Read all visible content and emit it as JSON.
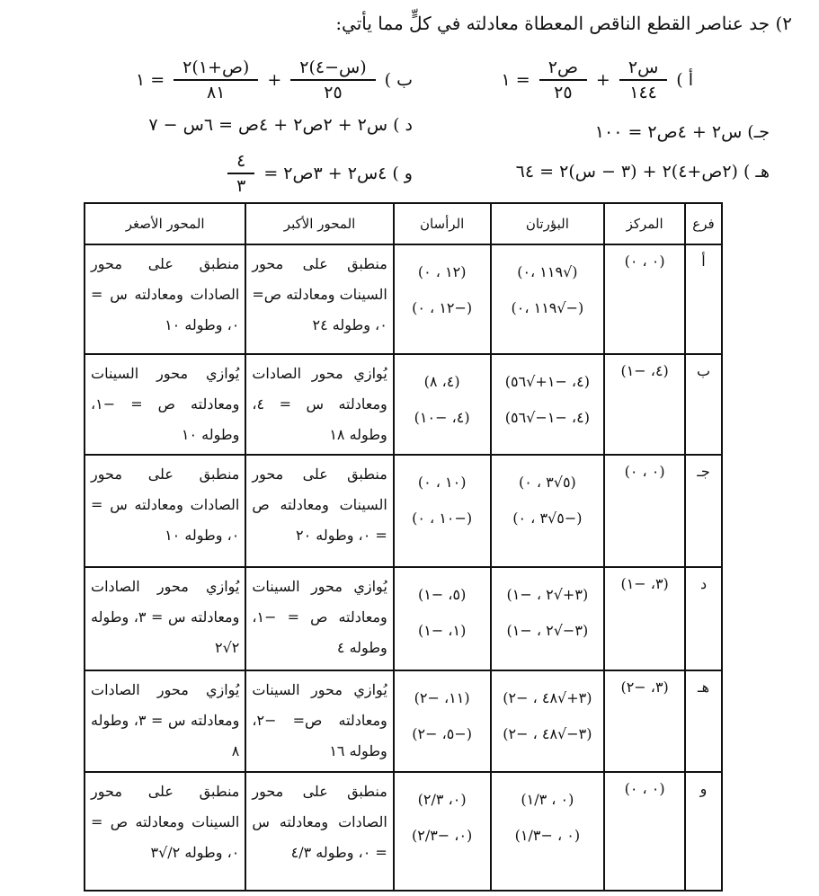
{
  "question": {
    "title": "٢) جد عناصر القطع الناقص المعطاة معادلته في كلٍّ مما يأتي:",
    "equations": {
      "a": {
        "label": "أ )",
        "t1_num": "س٢",
        "t1_den": "١٤٤",
        "plus": "+",
        "t2_num": "ص٢",
        "t2_den": "٢٥",
        "rhs": "= ١"
      },
      "b": {
        "label": "ب )",
        "t1_num": "(س−٤)٢",
        "t1_den": "٢٥",
        "plus": "+",
        "t2_num": "(ص+١)٢",
        "t2_den": "٨١",
        "rhs": "= ١"
      },
      "c": {
        "label": "جـ)",
        "expr": "س٢ + ٤ص٢ = ١٠٠"
      },
      "d": {
        "label": "د )",
        "expr": "س٢ + ٢ص٢ + ٤ص = ٦س − ٧"
      },
      "e": {
        "label": "هـ )",
        "expr": "(٢ص+٤)٢ + (٣ − س)٢ = ٦٤"
      },
      "f": {
        "label": "و )",
        "expr": "٤س٢ + ٣ص٢ =",
        "rhs_num": "٤",
        "rhs_den": "٣"
      }
    }
  },
  "table": {
    "headers": [
      "فرع",
      "المركز",
      "البؤرتان",
      "الرأسان",
      "المحور الأكبر",
      "المحور الأصغر"
    ],
    "rows": [
      {
        "branch": "أ",
        "center": "(٠ ، ٠)",
        "foci": [
          "(√١١٩ ،٠)",
          "(−√١١٩ ،٠)"
        ],
        "vertices": [
          "(١٢ ، ٠)",
          "(−١٢ ، ٠)"
        ],
        "major": "منطبق على محور السينات ومعادلته ص= ٠، وطوله ٢٤",
        "minor": "منطبق على محور الصادات ومعادلته س = ٠، وطوله ١٠"
      },
      {
        "branch": "ب",
        "center": "(٤، −١)",
        "foci": [
          "(٤، −١+√٥٦)",
          "(٤، −١−√٥٦)"
        ],
        "vertices": [
          "(٤، ٨)",
          "(٤، −١٠)"
        ],
        "major": "يُوازي محور الصادات ومعادلته س = ٤، وطوله ١٨",
        "minor": "يُوازي محور السينات ومعادلته ص = −١، وطوله ١٠"
      },
      {
        "branch": "جـ",
        "center": "(٠ ، ٠)",
        "foci": [
          "(٥√٣ ، ٠)",
          "(−٥√٣ ، ٠)"
        ],
        "vertices": [
          "(١٠ ، ٠)",
          "(−١٠ ، ٠)"
        ],
        "major": "منطبق على محور السينات ومعادلته ص = ٠، وطوله ٢٠",
        "minor": "منطبق على محور الصادات ومعادلته س = ٠، وطوله ١٠"
      },
      {
        "branch": "د",
        "center": "(٣، −١)",
        "foci": [
          "(٣+√٢ ، −١)",
          "(٣−√٢ ، −١)"
        ],
        "vertices": [
          "(٥، −١)",
          "(١، −١)"
        ],
        "major": "يُوازي محور السينات ومعادلته ص = −١، وطوله ٤",
        "minor": "يُوازي محور الصادات ومعادلته س = ٣، وطوله ٢√٢"
      },
      {
        "branch": "هـ",
        "center": "(٣، −٢)",
        "foci": [
          "(٣+√٤٨ ، −٢)",
          "(٣−√٤٨ ، −٢)"
        ],
        "vertices": [
          "(١١، −٢)",
          "(−٥، −٢)"
        ],
        "major": "يُوازي محور السينات ومعادلته ص= −٢، وطوله ١٦",
        "minor": "يُوازي محور الصادات ومعادلته س = ٣، وطوله ٨"
      },
      {
        "branch": "و",
        "center": "(٠ ، ٠)",
        "foci": [
          "(٠ ، ١/٣)",
          "(٠ ، −١/٣)"
        ],
        "vertices": [
          "(٠، ٢/٣)",
          "(٠، −٢/٣)"
        ],
        "major": "منطبق على محور الصادات ومعادلته س = ٠، وطوله ٤/٣",
        "minor": "منطبق على محور السينات ومعادلته ص = ٠، وطوله ٢/√٣"
      }
    ]
  }
}
